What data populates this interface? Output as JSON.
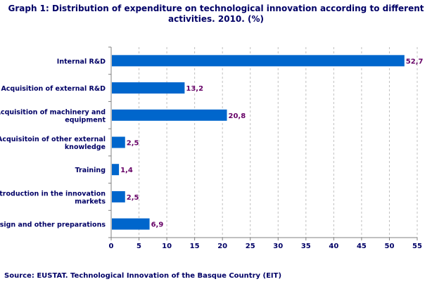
{
  "chart_data": {
    "type": "bar",
    "orientation": "horizontal",
    "title": "Graph 1: Distribution of expenditure on technological innovation according to different activities. 2010. (%)",
    "title_lines": [
      "Graph 1: Distribution of expenditure on technological innovation according to different",
      "activities. 2010. (%)"
    ],
    "categories": [
      [
        "Internal R&D"
      ],
      [
        "Acquisition of external R&D"
      ],
      [
        "Acquisition of machinery and",
        "equipment"
      ],
      [
        "Acquisitoin of other external",
        "knowledge"
      ],
      [
        "Training"
      ],
      [
        "Introduction in the innovation",
        "markets"
      ],
      [
        "Design and other preparations"
      ]
    ],
    "values": [
      52.7,
      13.2,
      20.8,
      2.5,
      1.4,
      2.5,
      6.9
    ],
    "data_labels": [
      "52,7",
      "13,2",
      "20,8",
      "2,5",
      "1,4",
      "2,5",
      "6,9"
    ],
    "xlim": [
      0,
      55
    ],
    "xticks": [
      0,
      5,
      10,
      15,
      20,
      25,
      30,
      35,
      40,
      45,
      50,
      55
    ],
    "grid": "vertical dashed",
    "legend": "none",
    "bar_color": "#0066CC",
    "label_color": "#660066",
    "text_color": "#000066"
  },
  "source": "Source: EUSTAT. Technological Innovation of the Basque Country (EIT)"
}
